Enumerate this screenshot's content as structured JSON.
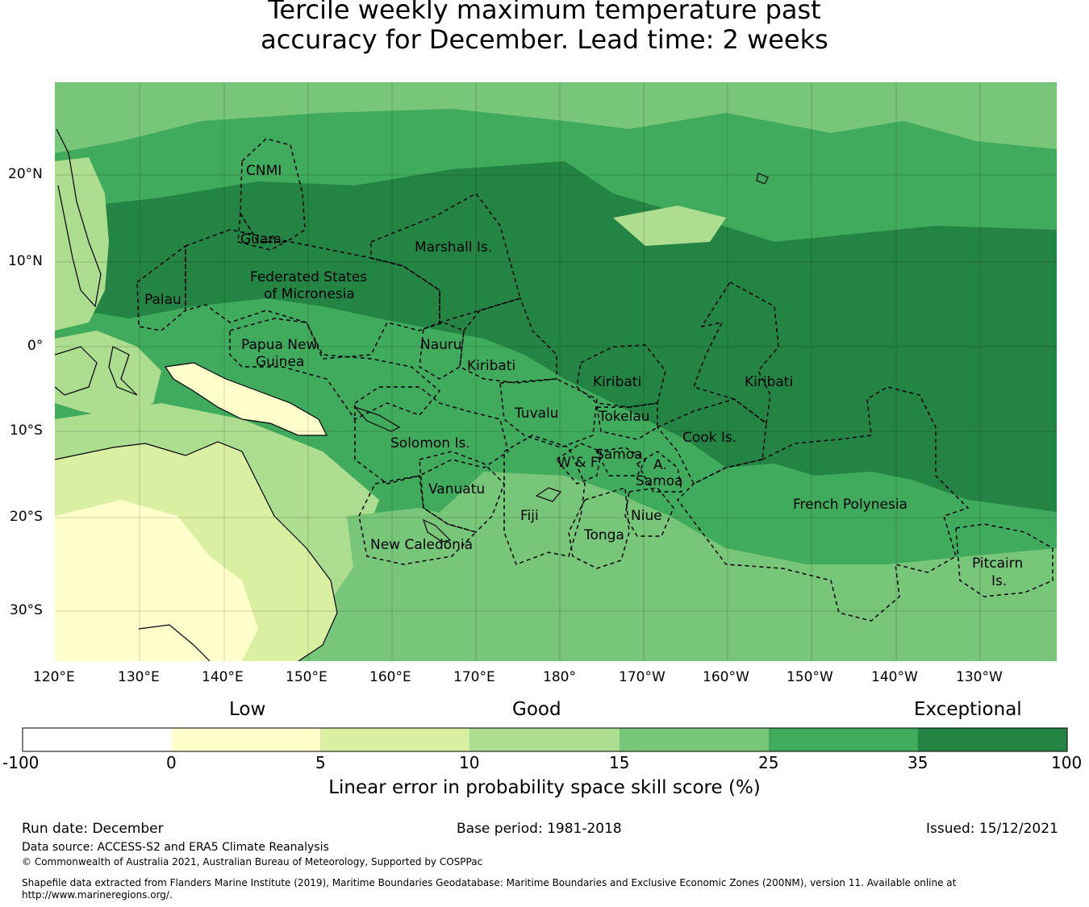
{
  "title_line1": "Tercile weekly maximum temperature past",
  "title_line2": "accuracy for December. Lead time: 2 weeks",
  "colors": {
    "ocean_exceptional": "#238443",
    "ocean_very_good": "#41ab5d",
    "ocean_good": "#78c679",
    "land_fair": "#addd8e",
    "land_low": "#d9f0a3",
    "land_verylow": "#ffffcc"
  },
  "lat_ticks": [
    "20°N",
    "10°N",
    "0°",
    "10°S",
    "20°S",
    "30°S"
  ],
  "lon_ticks": [
    "120°E",
    "130°E",
    "140°E",
    "150°E",
    "160°E",
    "170°E",
    "180°",
    "170°W",
    "160°W",
    "150°W",
    "140°W",
    "130°W"
  ],
  "regions": [
    {
      "name": "CNMI"
    },
    {
      "name": "Guam"
    },
    {
      "name": "Marshall Is."
    },
    {
      "name": "Federated States"
    },
    {
      "name": "of Micronesia"
    },
    {
      "name": "Palau"
    },
    {
      "name": "Papua New"
    },
    {
      "name": "Guinea"
    },
    {
      "name": "Nauru"
    },
    {
      "name": "Kiribati"
    },
    {
      "name": "Kiribati"
    },
    {
      "name": "Kiribati"
    },
    {
      "name": "Tuvalu"
    },
    {
      "name": "Tokelau"
    },
    {
      "name": "Cook Is."
    },
    {
      "name": "Solomon Is."
    },
    {
      "name": "Samoa"
    },
    {
      "name": "W & F"
    },
    {
      "name": "A."
    },
    {
      "name": "Samoa"
    },
    {
      "name": "Vanuatu"
    },
    {
      "name": "Fiji"
    },
    {
      "name": "Niue"
    },
    {
      "name": "Tonga"
    },
    {
      "name": "New Caledonia"
    },
    {
      "name": "French Polynesia"
    },
    {
      "name": "Pitcairn"
    },
    {
      "name": "Is."
    }
  ],
  "colorbar": {
    "categories": [
      "Low",
      "Good",
      "Exceptional"
    ],
    "bins": [
      {
        "from": -100,
        "to": 0,
        "color": "#ffffff"
      },
      {
        "from": 0,
        "to": 5,
        "color": "#ffffcc"
      },
      {
        "from": 5,
        "to": 10,
        "color": "#d9f0a3"
      },
      {
        "from": 10,
        "to": 15,
        "color": "#addd8e"
      },
      {
        "from": 15,
        "to": 25,
        "color": "#78c679"
      },
      {
        "from": 25,
        "to": 35,
        "color": "#41ab5d"
      },
      {
        "from": 35,
        "to": 100,
        "color": "#238443"
      }
    ],
    "ticks": [
      "-100",
      "0",
      "5",
      "10",
      "15",
      "25",
      "35",
      "100"
    ],
    "label": "Linear error in probability space skill score (%)"
  },
  "footer": {
    "run_date": "Run date: December",
    "base_period": "Base period: 1981-2018",
    "issued": "Issued: 15/12/2021",
    "data_source": "Data source: ACCESS-S2 and ERA5 Climate Reanalysis",
    "copyright": "© Commonwealth of Australia 2021, Australian Bureau of Meteorology, Supported by COSPPac",
    "shapefile_line1": "Shapefile data extracted from Flanders Marine Institute (2019), Maritime Boundaries Geodatabase: Maritime Boundaries and Exclusive Economic Zones (200NM), version 11. Available online at",
    "shapefile_line2": "http://www.marineregions.org/."
  }
}
